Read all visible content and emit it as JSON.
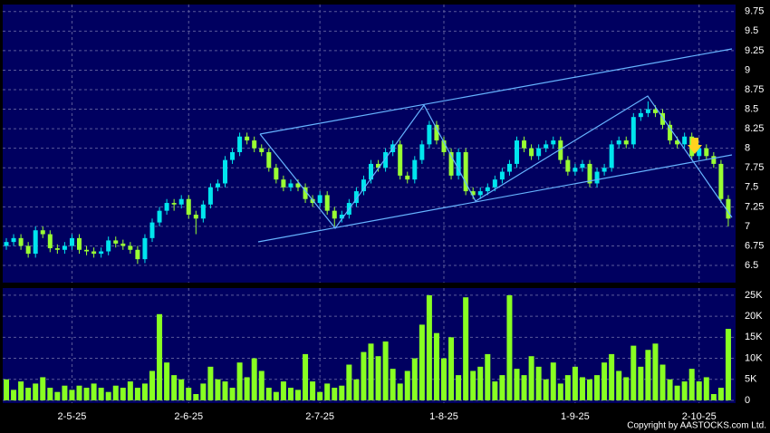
{
  "chart_data": [
    {
      "type": "candlestick",
      "categories": [
        null,
        null,
        null,
        null,
        null,
        null,
        null,
        null,
        null,
        "2-5-25",
        null,
        null,
        null,
        null,
        null,
        null,
        null,
        null,
        null,
        null,
        null,
        null,
        null,
        null,
        null,
        "2-6-25",
        null,
        null,
        null,
        null,
        null,
        null,
        null,
        null,
        null,
        null,
        null,
        null,
        null,
        null,
        null,
        null,
        null,
        "2-7-25",
        null,
        null,
        null,
        null,
        null,
        null,
        null,
        null,
        null,
        null,
        null,
        null,
        null,
        null,
        null,
        null,
        "1-8-25",
        null,
        null,
        null,
        null,
        null,
        null,
        null,
        null,
        null,
        null,
        null,
        null,
        null,
        null,
        null,
        null,
        null,
        "1-9-25",
        null,
        null,
        null,
        null,
        null,
        null,
        null,
        null,
        null,
        null,
        null,
        null,
        null,
        null,
        null,
        null,
        "2-10-25",
        null,
        null,
        null,
        null
      ],
      "open": [
        6.75,
        6.8,
        6.85,
        6.75,
        6.65,
        6.95,
        6.9,
        6.72,
        6.7,
        6.75,
        6.85,
        6.7,
        6.68,
        6.65,
        6.68,
        6.82,
        6.78,
        6.75,
        6.7,
        6.58,
        6.85,
        7.05,
        7.2,
        7.3,
        7.28,
        7.35,
        7.15,
        7.1,
        7.28,
        7.5,
        7.55,
        7.85,
        7.95,
        8.15,
        8.1,
        8.0,
        7.95,
        7.75,
        7.6,
        7.5,
        7.55,
        7.5,
        7.35,
        7.3,
        7.4,
        7.2,
        7.1,
        7.15,
        7.3,
        7.45,
        7.6,
        7.8,
        7.75,
        7.95,
        8.05,
        7.65,
        7.6,
        7.85,
        8.05,
        8.3,
        8.1,
        7.95,
        7.65,
        7.95,
        7.45,
        7.4,
        7.45,
        7.5,
        7.6,
        7.7,
        7.8,
        8.1,
        8.0,
        7.9,
        8.0,
        8.05,
        8.1,
        7.85,
        7.7,
        7.75,
        7.8,
        7.55,
        7.7,
        7.75,
        8.05,
        8.1,
        8.05,
        8.4,
        8.45,
        8.5,
        8.45,
        8.3,
        8.1,
        8.05,
        8.15,
        7.9,
        8.0,
        7.9,
        7.8,
        7.35
      ],
      "high": [
        6.85,
        6.9,
        6.9,
        6.8,
        7.0,
        7.0,
        6.95,
        6.77,
        6.8,
        6.9,
        6.9,
        6.75,
        6.73,
        6.73,
        6.87,
        6.87,
        6.83,
        6.8,
        6.75,
        6.9,
        7.1,
        7.25,
        7.35,
        7.35,
        7.4,
        7.4,
        7.2,
        7.33,
        7.55,
        7.6,
        7.9,
        8.0,
        8.2,
        8.2,
        8.15,
        8.05,
        8.0,
        7.8,
        7.65,
        7.6,
        7.6,
        7.55,
        7.4,
        7.45,
        7.45,
        7.25,
        7.2,
        7.35,
        7.5,
        7.65,
        7.85,
        7.85,
        8.0,
        8.1,
        8.1,
        7.7,
        7.9,
        8.1,
        8.35,
        8.35,
        8.15,
        8.0,
        8.0,
        8.0,
        7.5,
        7.5,
        7.55,
        7.65,
        7.75,
        7.85,
        8.15,
        8.15,
        8.05,
        8.05,
        8.1,
        8.15,
        8.15,
        7.9,
        7.8,
        7.85,
        7.85,
        7.75,
        7.8,
        8.1,
        8.15,
        8.15,
        8.45,
        8.5,
        8.6,
        8.55,
        8.5,
        8.35,
        8.15,
        8.2,
        8.2,
        8.05,
        8.05,
        7.95,
        7.85,
        7.4
      ],
      "low": [
        6.7,
        6.75,
        6.7,
        6.6,
        6.6,
        6.85,
        6.67,
        6.65,
        6.65,
        6.7,
        6.65,
        6.63,
        6.6,
        6.6,
        6.63,
        6.73,
        6.7,
        6.65,
        6.52,
        6.53,
        6.8,
        7.0,
        7.15,
        7.2,
        7.23,
        7.1,
        6.9,
        7.05,
        7.23,
        7.45,
        7.5,
        7.8,
        7.9,
        8.05,
        7.95,
        7.9,
        7.7,
        7.55,
        7.45,
        7.45,
        7.45,
        7.3,
        7.25,
        7.25,
        7.15,
        7.0,
        7.05,
        7.1,
        7.25,
        7.4,
        7.55,
        7.7,
        7.7,
        7.9,
        7.6,
        7.55,
        7.55,
        7.8,
        8.0,
        8.05,
        7.9,
        7.6,
        7.6,
        7.4,
        7.35,
        7.35,
        7.4,
        7.45,
        7.55,
        7.65,
        7.75,
        7.95,
        7.85,
        7.85,
        7.95,
        8.0,
        7.8,
        7.65,
        7.65,
        7.7,
        7.5,
        7.5,
        7.65,
        7.7,
        8.0,
        8.0,
        8.0,
        8.35,
        8.4,
        8.4,
        8.25,
        8.05,
        8.0,
        8.0,
        7.85,
        7.85,
        7.85,
        7.75,
        7.3,
        7.0
      ],
      "close": [
        6.8,
        6.85,
        6.75,
        6.65,
        6.95,
        6.9,
        6.72,
        6.7,
        6.75,
        6.85,
        6.7,
        6.68,
        6.65,
        6.68,
        6.82,
        6.78,
        6.75,
        6.7,
        6.58,
        6.85,
        7.05,
        7.2,
        7.3,
        7.28,
        7.35,
        7.15,
        7.1,
        7.28,
        7.5,
        7.55,
        7.85,
        7.95,
        8.15,
        8.1,
        8.0,
        7.95,
        7.75,
        7.6,
        7.5,
        7.55,
        7.5,
        7.35,
        7.3,
        7.4,
        7.2,
        7.1,
        7.15,
        7.3,
        7.45,
        7.6,
        7.8,
        7.75,
        7.95,
        8.05,
        7.65,
        7.6,
        7.85,
        8.05,
        8.3,
        8.1,
        7.95,
        7.65,
        7.95,
        7.45,
        7.4,
        7.45,
        7.5,
        7.6,
        7.7,
        7.8,
        8.1,
        8.0,
        7.9,
        8.0,
        8.05,
        8.1,
        7.85,
        7.7,
        7.75,
        7.8,
        7.55,
        7.7,
        7.75,
        8.05,
        8.1,
        8.05,
        8.4,
        8.45,
        8.5,
        8.45,
        8.3,
        8.1,
        8.05,
        8.15,
        7.9,
        8.0,
        7.9,
        7.8,
        7.35,
        7.1
      ],
      "up_color": "#00e5ee",
      "down_color": "#99ff33",
      "ylim": [
        6.28,
        9.84
      ],
      "yticks": [
        6.5,
        6.75,
        7,
        7.25,
        7.5,
        7.75,
        8,
        8.25,
        8.5,
        8.75,
        9,
        9.25,
        9.5,
        9.75
      ],
      "grid": true
    },
    {
      "type": "bar",
      "values": [
        5000,
        2500,
        4500,
        3000,
        4000,
        5500,
        3000,
        2000,
        3500,
        2500,
        3500,
        3000,
        4000,
        3000,
        2000,
        3500,
        3000,
        4500,
        3000,
        4000,
        7000,
        20500,
        9000,
        6000,
        5000,
        3000,
        1500,
        4000,
        8000,
        5000,
        4500,
        3000,
        9000,
        5500,
        10000,
        7000,
        3000,
        2000,
        4500,
        3000,
        2500,
        11000,
        4500,
        2000,
        4000,
        3000,
        3500,
        8500,
        5000,
        11500,
        13500,
        10500,
        14000,
        7500,
        4000,
        7000,
        10000,
        18000,
        25000,
        16000,
        10000,
        15000,
        6000,
        24500,
        7000,
        8000,
        11000,
        4500,
        6000,
        25000,
        7500,
        6000,
        10500,
        8000,
        5000,
        9000,
        4000,
        6000,
        8000,
        5500,
        5000,
        6000,
        9000,
        11000,
        7000,
        5500,
        13000,
        8000,
        12000,
        13500,
        8500,
        5000,
        3500,
        4500,
        7500,
        4500,
        5500,
        1500,
        3000,
        17000
      ],
      "color": "#88ff22",
      "ylim": [
        -650,
        26700
      ],
      "yticks": [
        0,
        {
          "value": 5000,
          "label": "5K"
        },
        {
          "value": 10000,
          "label": "10K"
        },
        {
          "value": 15000,
          "label": "15K"
        },
        {
          "value": 20000,
          "label": "20K"
        },
        {
          "value": 25000,
          "label": "25K"
        }
      ],
      "grid": true
    }
  ],
  "footer": "Copyright by AASTOCKS.com Ltd."
}
